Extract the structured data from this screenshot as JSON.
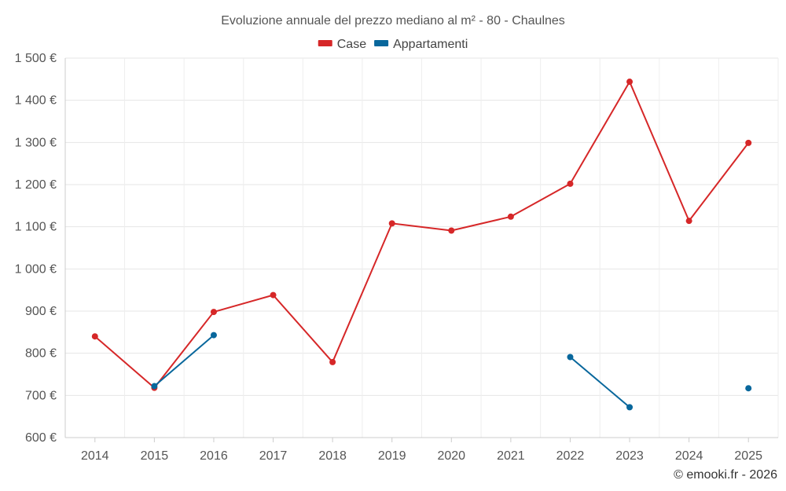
{
  "chart_data": {
    "type": "line",
    "title": "Evoluzione annuale del prezzo mediano al m² - 80 - Chaulnes",
    "categories": [
      "2014",
      "2015",
      "2016",
      "2017",
      "2018",
      "2019",
      "2020",
      "2021",
      "2022",
      "2023",
      "2024",
      "2025"
    ],
    "ylim": [
      600,
      1500
    ],
    "yticks": [
      600,
      700,
      800,
      900,
      1000,
      1100,
      1200,
      1300,
      1400,
      1500
    ],
    "ytick_labels": [
      "600 €",
      "700 €",
      "800 €",
      "900 €",
      "1 000 €",
      "1 100 €",
      "1 200 €",
      "1 300 €",
      "1 400 €",
      "1 500 €"
    ],
    "grid": true,
    "legend_position": "top-center",
    "series": [
      {
        "name": "Case",
        "color": "#d62728",
        "values": [
          840,
          718,
          898,
          938,
          779,
          1108,
          1091,
          1124,
          1202,
          1444,
          1114,
          1299
        ]
      },
      {
        "name": "Appartamenti",
        "color": "#08679c",
        "values": [
          null,
          722,
          843,
          null,
          null,
          null,
          null,
          null,
          791,
          672,
          null,
          717
        ]
      }
    ]
  },
  "credit": "© emooki.fr - 2026"
}
